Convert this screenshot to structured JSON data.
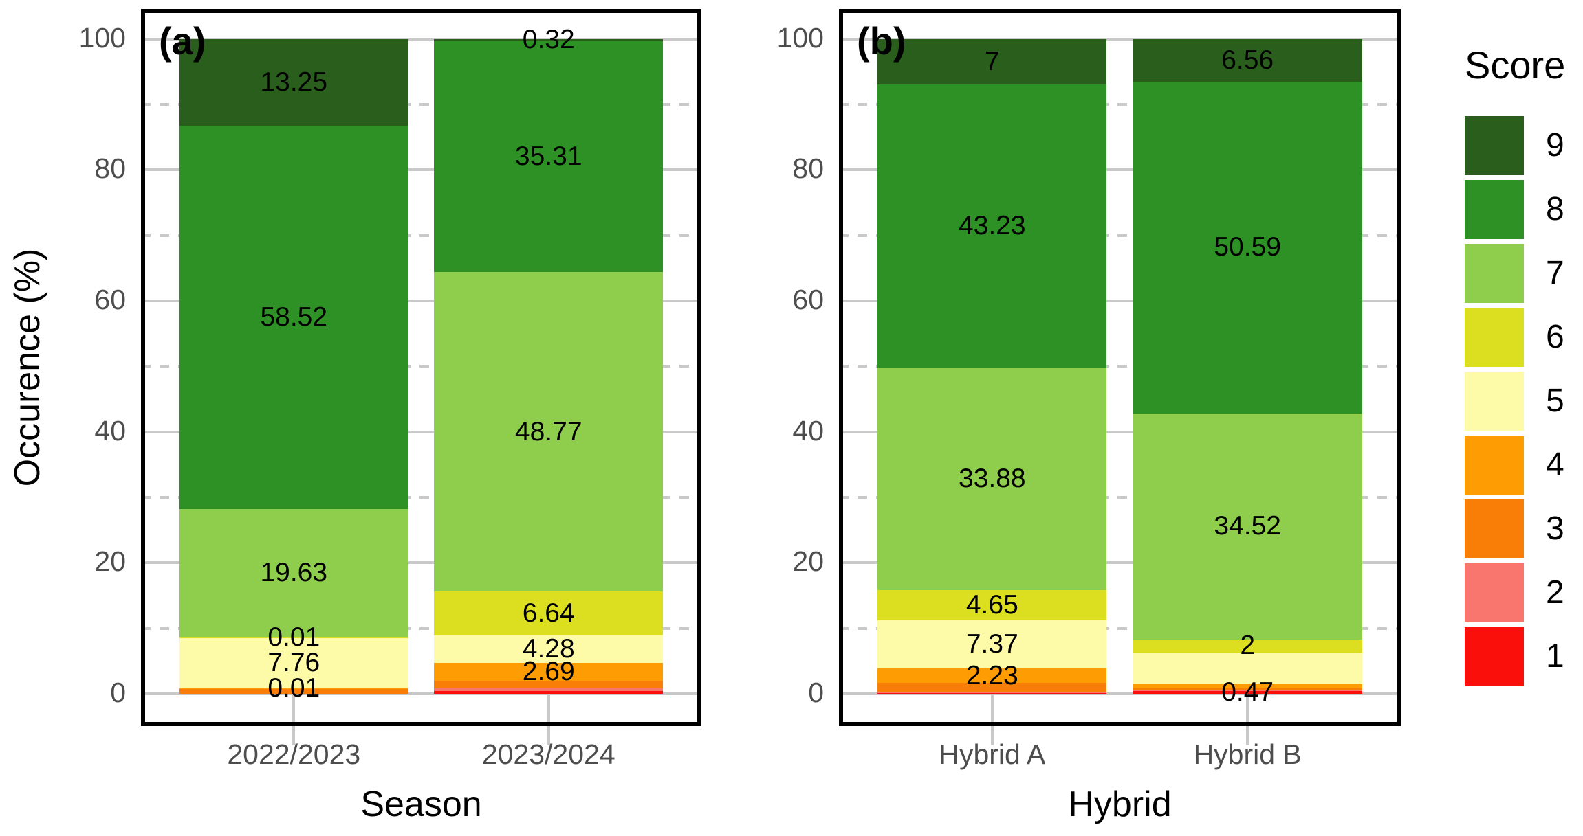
{
  "figure": {
    "ylabel": "Occurence (%)",
    "background": "#FFFFFF",
    "axis_text_color": "#4D4D4D",
    "grid_color": "#C9C9C9",
    "legend": {
      "title": "Score",
      "entries": [
        {
          "label": "9",
          "color": "#2A5E1D"
        },
        {
          "label": "8",
          "color": "#2E9125"
        },
        {
          "label": "7",
          "color": "#8FCE4C"
        },
        {
          "label": "6",
          "color": "#DCDE20"
        },
        {
          "label": "5",
          "color": "#FEFBA8"
        },
        {
          "label": "4",
          "color": "#FD9D03"
        },
        {
          "label": "3",
          "color": "#F87E08"
        },
        {
          "label": "2",
          "color": "#F8766D"
        },
        {
          "label": "1",
          "color": "#FB0F0B"
        }
      ]
    }
  },
  "chart_data": [
    {
      "type": "bar",
      "stacked": true,
      "panel_tag": "(a)",
      "xlabel": "Season",
      "ylabel": "Occurence (%)",
      "ylim": [
        0,
        100
      ],
      "yticks": [
        0,
        20,
        40,
        60,
        80,
        100
      ],
      "minor_grid": [
        10,
        30,
        50,
        70,
        90
      ],
      "grid": "major solid, minor dashed",
      "legend_position": "right of panel b",
      "categories": [
        "2022/2023",
        "2023/2024"
      ],
      "series": [
        {
          "name": "9",
          "color": "#2A5E1D",
          "values": [
            13.25,
            0.32
          ],
          "labels": [
            "13.25",
            "0.32"
          ]
        },
        {
          "name": "8",
          "color": "#2E9125",
          "values": [
            58.52,
            35.31
          ],
          "labels": [
            "58.52",
            "35.31"
          ]
        },
        {
          "name": "7",
          "color": "#8FCE4C",
          "values": [
            19.63,
            48.77
          ],
          "labels": [
            "19.63",
            "48.77"
          ]
        },
        {
          "name": "6",
          "color": "#DCDE20",
          "values": [
            0.01,
            6.64
          ],
          "labels": [
            "0.01",
            "6.64"
          ]
        },
        {
          "name": "5",
          "color": "#FEFBA8",
          "values": [
            7.76,
            4.28
          ],
          "labels": [
            "7.76",
            "4.28"
          ]
        },
        {
          "name": "4",
          "color": "#FD9D03",
          "values": [
            0.01,
            2.69
          ],
          "labels": [
            "0.01",
            "2.69"
          ]
        },
        {
          "name": "3",
          "color": "#F87E08",
          "values": [
            0.82,
            1.1
          ],
          "labels": [
            null,
            null
          ]
        },
        {
          "name": "2",
          "color": "#F8766D",
          "values": [
            0,
            0.5
          ],
          "labels": [
            null,
            null
          ]
        },
        {
          "name": "1",
          "color": "#FB0F0B",
          "values": [
            0,
            0.39
          ],
          "labels": [
            null,
            null
          ]
        }
      ],
      "note": "segments with null labels have no visible value label in the figure; their heights are estimated from pixels"
    },
    {
      "type": "bar",
      "stacked": true,
      "panel_tag": "(b)",
      "xlabel": "Hybrid",
      "ylabel": "Occurence (%)",
      "ylim": [
        0,
        100
      ],
      "yticks": [
        0,
        20,
        40,
        60,
        80,
        100
      ],
      "minor_grid": [
        10,
        30,
        50,
        70,
        90
      ],
      "grid": "major solid, minor dashed",
      "categories": [
        "Hybrid A",
        "Hybrid B"
      ],
      "series": [
        {
          "name": "9",
          "color": "#2A5E1D",
          "values": [
            7,
            6.56
          ],
          "labels": [
            "7",
            "6.56"
          ]
        },
        {
          "name": "8",
          "color": "#2E9125",
          "values": [
            43.23,
            50.59
          ],
          "labels": [
            "43.23",
            "50.59"
          ]
        },
        {
          "name": "7",
          "color": "#8FCE4C",
          "values": [
            33.88,
            34.52
          ],
          "labels": [
            "33.88",
            "34.52"
          ]
        },
        {
          "name": "6",
          "color": "#DCDE20",
          "values": [
            4.65,
            2
          ],
          "labels": [
            "4.65",
            "2"
          ]
        },
        {
          "name": "5",
          "color": "#FEFBA8",
          "values": [
            7.37,
            4.9
          ],
          "labels": [
            "7.37",
            null
          ]
        },
        {
          "name": "4",
          "color": "#FD9D03",
          "values": [
            2.23,
            0.6
          ],
          "labels": [
            "2.23",
            null
          ]
        },
        {
          "name": "3",
          "color": "#F87E08",
          "values": [
            1.3,
            0.3
          ],
          "labels": [
            null,
            null
          ]
        },
        {
          "name": "2",
          "color": "#F8766D",
          "values": [
            0.2,
            0.06
          ],
          "labels": [
            null,
            null
          ]
        },
        {
          "name": "1",
          "color": "#FB0F0B",
          "values": [
            0.14,
            0.47
          ],
          "labels": [
            null,
            "0.47"
          ]
        }
      ],
      "note": "segments with null labels have no visible value label in the figure; their heights are estimated from pixels"
    }
  ]
}
